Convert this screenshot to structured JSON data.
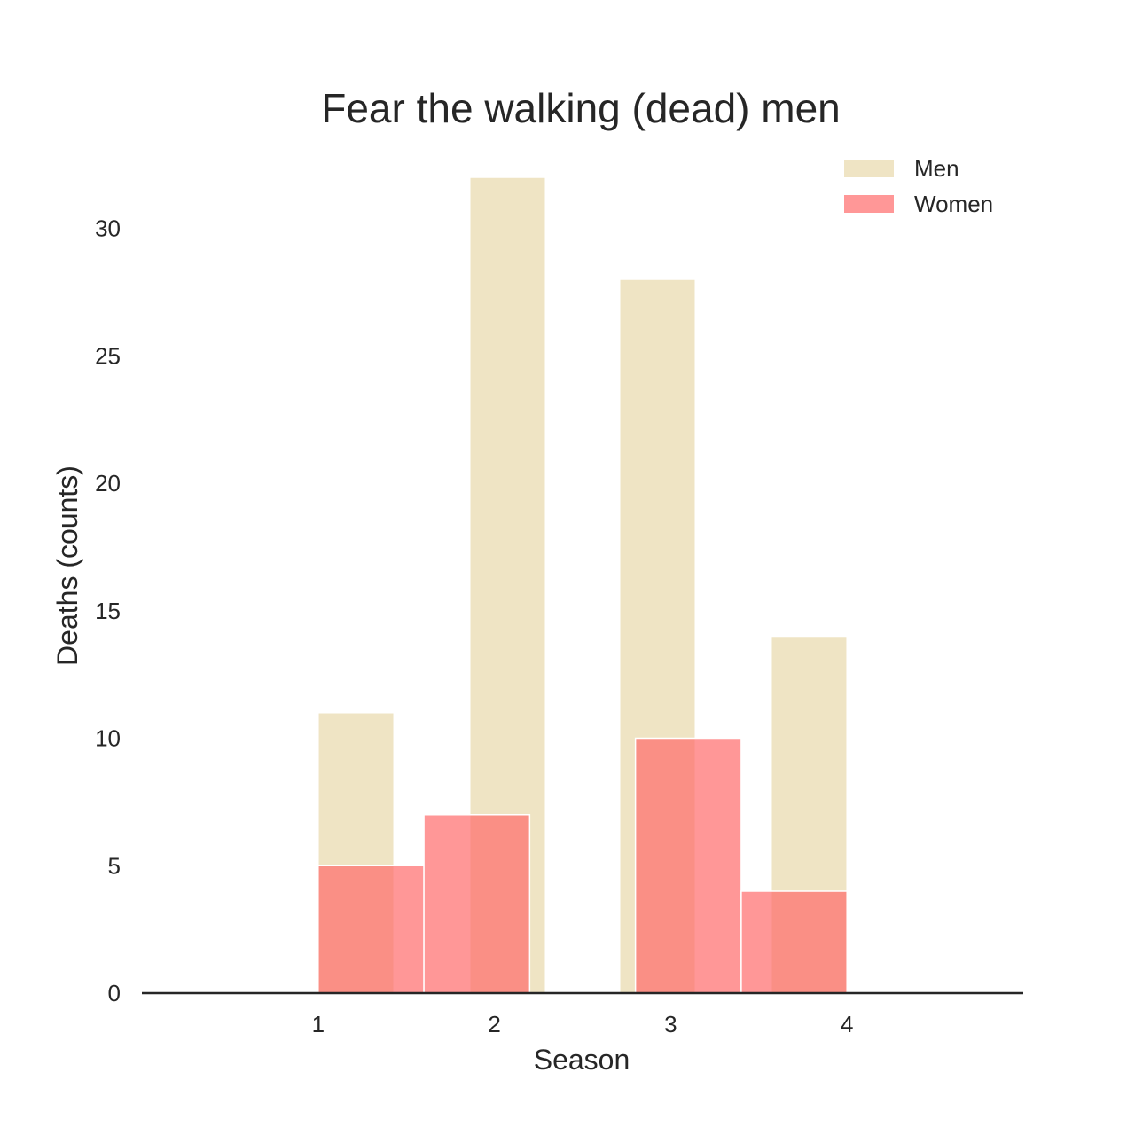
{
  "chart_data": {
    "type": "bar",
    "title": "Fear the walking (dead) men",
    "xlabel": "Season",
    "ylabel": "Deaths (counts)",
    "xlim": [
      0,
      5
    ],
    "ylim": [
      0,
      32
    ],
    "xticks": [
      "1",
      "2",
      "3",
      "4"
    ],
    "yticks": [
      "0",
      "5",
      "10",
      "15",
      "20",
      "25",
      "30"
    ],
    "grid": false,
    "legend_position": "top-right",
    "series": [
      {
        "name": "Men",
        "color": "#e6d5a4",
        "opacity": 0.65,
        "bars": [
          {
            "x0": 1.0,
            "x1": 1.43,
            "value": 11
          },
          {
            "x0": 1.43,
            "x1": 1.86,
            "value": 0
          },
          {
            "x0": 1.86,
            "x1": 2.29,
            "value": 32
          },
          {
            "x0": 2.29,
            "x1": 2.71,
            "value": 0
          },
          {
            "x0": 2.71,
            "x1": 3.14,
            "value": 28
          },
          {
            "x0": 3.14,
            "x1": 3.57,
            "value": 0
          },
          {
            "x0": 3.57,
            "x1": 4.0,
            "value": 14
          }
        ]
      },
      {
        "name": "Women",
        "color": "#ff6b6b",
        "opacity": 0.7,
        "bars": [
          {
            "x0": 1.0,
            "x1": 1.6,
            "value": 5
          },
          {
            "x0": 1.6,
            "x1": 2.2,
            "value": 7
          },
          {
            "x0": 2.2,
            "x1": 2.8,
            "value": 0
          },
          {
            "x0": 2.8,
            "x1": 3.4,
            "value": 10
          },
          {
            "x0": 3.4,
            "x1": 4.0,
            "value": 4
          }
        ]
      }
    ]
  }
}
